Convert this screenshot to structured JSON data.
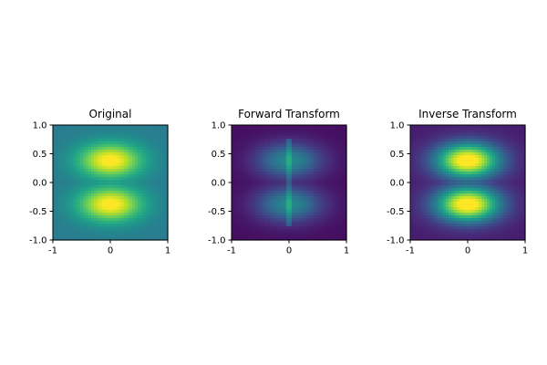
{
  "figure": {
    "background": "#ffffff"
  },
  "colormap": {
    "name": "viridis",
    "stops": [
      "#440154",
      "#482878",
      "#3e4989",
      "#31688e",
      "#26828e",
      "#1f9e89",
      "#35b779",
      "#6ece58",
      "#b5de2b",
      "#fde725"
    ]
  },
  "chart_data": [
    {
      "type": "heatmap",
      "title": "Original",
      "xlim": [
        -1,
        1
      ],
      "ylim": [
        -1,
        1
      ],
      "xticks": [
        "-1",
        "0",
        "1"
      ],
      "yticks": [
        "1.0",
        "0.5",
        "0.0",
        "-0.5",
        "-1.0"
      ],
      "value_range": [
        0,
        1
      ],
      "background_value": 0.42,
      "peaks": [
        {
          "x": 0.0,
          "y": 0.38,
          "value": 0.95
        },
        {
          "x": 0.0,
          "y": -0.38,
          "value": 0.95
        }
      ]
    },
    {
      "type": "heatmap",
      "title": "Forward Transform",
      "xlim": [
        -1,
        1
      ],
      "ylim": [
        -1,
        1
      ],
      "xticks": [
        "-1",
        "0",
        "1"
      ],
      "yticks": [
        "1.0",
        "0.5",
        "0.0",
        "-0.5",
        "-1.0"
      ],
      "value_range": [
        0,
        1
      ],
      "background_value": 0.04,
      "peaks": [
        {
          "x": 0.0,
          "y": 0.38,
          "value": 0.42
        },
        {
          "x": 0.0,
          "y": -0.38,
          "value": 0.42
        }
      ],
      "vertical_line": {
        "x": 0.0,
        "y_range": [
          -0.78,
          0.78
        ],
        "value": 0.3
      }
    },
    {
      "type": "heatmap",
      "title": "Inverse Transform",
      "xlim": [
        -1,
        1
      ],
      "ylim": [
        -1,
        1
      ],
      "xticks": [
        "-1",
        "0",
        "1"
      ],
      "yticks": [
        "1.0",
        "0.5",
        "0.0",
        "-0.5",
        "-1.0"
      ],
      "value_range": [
        0,
        1
      ],
      "background_value": 0.08,
      "peaks": [
        {
          "x": 0.0,
          "y": 0.38,
          "value": 0.95
        },
        {
          "x": 0.0,
          "y": -0.38,
          "value": 0.95
        }
      ]
    }
  ]
}
